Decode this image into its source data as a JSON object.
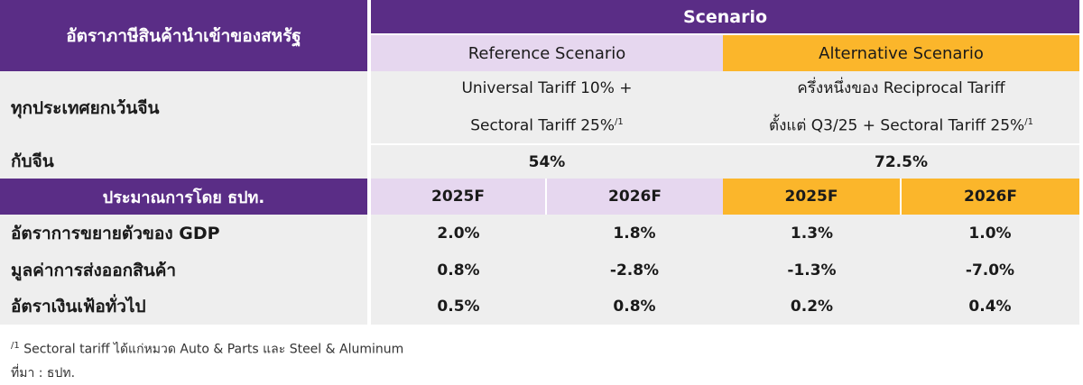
{
  "header": {
    "left_title": "อัตราภาษีสินค้านำเข้าของสหรัฐ",
    "scenario_title": "Scenario",
    "reference_label": "Reference Scenario",
    "alternative_label": "Alternative Scenario"
  },
  "tariff_rows": [
    {
      "label": "ทุกประเทศยกเว้นจีน",
      "reference_line1": "Universal Tariff 10% +",
      "reference_line2": "Sectoral Tariff 25%",
      "reference_sup": "/1",
      "alternative_line1": "ครึ่งหนึ่งของ Reciprocal Tariff",
      "alternative_line2": "ตั้งแต่ Q3/25 + Sectoral Tariff 25%",
      "alternative_sup": "/1"
    },
    {
      "label": "กับจีน",
      "reference_value": "54%",
      "alternative_value": "72.5%"
    }
  ],
  "forecast_header": {
    "label": "ประมาณการโดย ธปท.",
    "years": [
      "2025F",
      "2026F",
      "2025F",
      "2026F"
    ]
  },
  "forecast_rows": [
    {
      "label": "อัตราการขยายตัวของ GDP",
      "values": [
        "2.0%",
        "1.8%",
        "1.3%",
        "1.0%"
      ]
    },
    {
      "label": "มูลค่าการส่งออกสินค้า",
      "values": [
        "0.8%",
        "-2.8%",
        "-1.3%",
        "-7.0%"
      ]
    },
    {
      "label": "อัตราเงินเฟ้อทั่วไป",
      "values": [
        "0.5%",
        "0.8%",
        "0.2%",
        "0.4%"
      ]
    }
  ],
  "footnotes": {
    "note_sup": "/1",
    "note_text": "Sectoral tariff ได้แก่หมวด Auto & Parts และ Steel & Aluminum",
    "source": "ที่มา : ธปท."
  },
  "colors": {
    "purple": "#5a2d86",
    "lavender": "#e6d7ef",
    "orange": "#fbb62b",
    "gray": "#eeeeee"
  }
}
